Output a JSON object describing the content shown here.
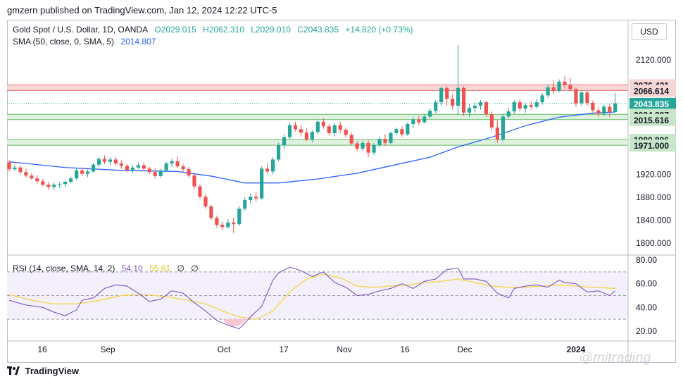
{
  "header": {
    "attribution": "gmzern published on TradingView.com, Jan 12, 2024 12:22 UTC-5",
    "currency_button": "USD"
  },
  "legend": {
    "symbol": "Gold Spot / U.S. Dollar, 1D, OANDA",
    "open": "O2029.015",
    "high": "H2062.310",
    "low": "L2029.010",
    "close": "C2043.835",
    "change": "+14.820 (+0.73%)",
    "sma_label": "SMA (50, close, 0, SMA, 5)",
    "sma_value": "2014.807",
    "rsi_label": "RSI (14, close, SMA, 14, 2)",
    "rsi_value": "54.10",
    "rsi_sma_value": "55.61",
    "rsi_extra1": "∅",
    "rsi_extra2": "∅"
  },
  "colors": {
    "up": "#26a69a",
    "down": "#ef5350",
    "sma": "#2962ff",
    "rsi": "#7e57c2",
    "rsi_sma": "#f5d33a",
    "resistance_zone": "#f8d6d6",
    "support_zone": "#dff2df"
  },
  "footer": {
    "brand": "TradingView",
    "watermark": "@mitrading"
  },
  "chart_data": [
    {
      "type": "candlestick",
      "title": "Gold Spot / U.S. Dollar, 1D, OANDA",
      "y_axis_ticks": [
        "2120.000",
        "2080.000",
        "1920.000",
        "1880.000",
        "1840.000",
        "1800.000"
      ],
      "x_axis_ticks": [
        "16",
        "Sep",
        "Oct",
        "17",
        "Nov",
        "16",
        "Dec",
        "2024"
      ],
      "ylim": [
        1780,
        2160
      ],
      "price_labels": [
        {
          "text": "2076.421",
          "kind": "resistance"
        },
        {
          "text": "2066.614",
          "kind": "resistance"
        },
        {
          "text": "2043.835",
          "kind": "last",
          "sub": "04:37:43"
        },
        {
          "text": "2024.897",
          "kind": "support"
        },
        {
          "text": "2015.616",
          "kind": "support"
        },
        {
          "text": "1980.806",
          "kind": "support"
        },
        {
          "text": "1971.000",
          "kind": "support"
        }
      ],
      "zones": [
        {
          "kind": "resistance",
          "from": 2066.614,
          "to": 2076.421
        },
        {
          "kind": "support",
          "from": 2015.616,
          "to": 2024.897
        },
        {
          "kind": "support",
          "from": 1971.0,
          "to": 1980.806
        }
      ],
      "candles": [
        [
          1941,
          1945,
          1925,
          1929
        ],
        [
          1929,
          1937,
          1926,
          1932
        ],
        [
          1932,
          1936,
          1920,
          1924
        ],
        [
          1924,
          1930,
          1914,
          1918
        ],
        [
          1918,
          1922,
          1910,
          1913
        ],
        [
          1913,
          1918,
          1904,
          1908
        ],
        [
          1908,
          1912,
          1899,
          1902
        ],
        [
          1902,
          1907,
          1893,
          1898
        ],
        [
          1898,
          1906,
          1893,
          1902
        ],
        [
          1902,
          1907,
          1896,
          1903
        ],
        [
          1903,
          1910,
          1898,
          1907
        ],
        [
          1907,
          1916,
          1904,
          1913
        ],
        [
          1913,
          1930,
          1910,
          1927
        ],
        [
          1927,
          1932,
          1917,
          1921
        ],
        [
          1921,
          1929,
          1915,
          1925
        ],
        [
          1925,
          1940,
          1923,
          1937
        ],
        [
          1937,
          1950,
          1932,
          1947
        ],
        [
          1947,
          1953,
          1938,
          1942
        ],
        [
          1942,
          1950,
          1936,
          1946
        ],
        [
          1946,
          1951,
          1935,
          1939
        ],
        [
          1939,
          1945,
          1930,
          1935
        ],
        [
          1935,
          1938,
          1924,
          1928
        ],
        [
          1928,
          1936,
          1922,
          1932
        ],
        [
          1932,
          1942,
          1929,
          1936
        ],
        [
          1936,
          1941,
          1927,
          1930
        ],
        [
          1930,
          1933,
          1920,
          1924
        ],
        [
          1924,
          1930,
          1913,
          1917
        ],
        [
          1917,
          1930,
          1914,
          1927
        ],
        [
          1927,
          1942,
          1924,
          1939
        ],
        [
          1939,
          1947,
          1933,
          1943
        ],
        [
          1943,
          1951,
          1931,
          1934
        ],
        [
          1934,
          1938,
          1924,
          1929
        ],
        [
          1929,
          1933,
          1914,
          1918
        ],
        [
          1918,
          1922,
          1895,
          1899
        ],
        [
          1899,
          1903,
          1877,
          1881
        ],
        [
          1881,
          1886,
          1860,
          1864
        ],
        [
          1864,
          1867,
          1840,
          1844
        ],
        [
          1844,
          1848,
          1827,
          1832
        ],
        [
          1832,
          1837,
          1823,
          1828
        ],
        [
          1828,
          1842,
          1825,
          1836
        ],
        [
          1836,
          1845,
          1817,
          1833
        ],
        [
          1833,
          1865,
          1830,
          1860
        ],
        [
          1860,
          1880,
          1856,
          1875
        ],
        [
          1875,
          1887,
          1869,
          1881
        ],
        [
          1881,
          1890,
          1873,
          1878
        ],
        [
          1878,
          1934,
          1876,
          1930
        ],
        [
          1930,
          1940,
          1921,
          1925
        ],
        [
          1925,
          1950,
          1920,
          1946
        ],
        [
          1946,
          1975,
          1943,
          1971
        ],
        [
          1971,
          1990,
          1965,
          1985
        ],
        [
          1985,
          2010,
          1982,
          2006
        ],
        [
          2006,
          2012,
          1995,
          1999
        ],
        [
          1999,
          2007,
          1986,
          1993
        ],
        [
          1993,
          2000,
          1978,
          1981
        ],
        [
          1981,
          1997,
          1976,
          1994
        ],
        [
          1994,
          2016,
          1991,
          2012
        ],
        [
          2012,
          2018,
          2000,
          2004
        ],
        [
          2004,
          2008,
          1988,
          1992
        ],
        [
          1992,
          2010,
          1986,
          2006
        ],
        [
          2006,
          2012,
          1992,
          1998
        ],
        [
          1998,
          2002,
          1984,
          1989
        ],
        [
          1989,
          1993,
          1971,
          1974
        ],
        [
          1974,
          1978,
          1961,
          1965
        ],
        [
          1965,
          1979,
          1960,
          1975
        ],
        [
          1975,
          1980,
          1950,
          1958
        ],
        [
          1958,
          1975,
          1954,
          1971
        ],
        [
          1971,
          1986,
          1967,
          1982
        ],
        [
          1982,
          1990,
          1970,
          1975
        ],
        [
          1975,
          1995,
          1973,
          1992
        ],
        [
          1992,
          2002,
          1988,
          1999
        ],
        [
          1999,
          2004,
          1986,
          1990
        ],
        [
          1990,
          2011,
          1987,
          2008
        ],
        [
          2008,
          2020,
          2001,
          2016
        ],
        [
          2016,
          2022,
          2006,
          2011
        ],
        [
          2011,
          2025,
          2009,
          2021
        ],
        [
          2021,
          2035,
          2018,
          2031
        ],
        [
          2031,
          2050,
          2027,
          2046
        ],
        [
          2046,
          2073,
          2040,
          2071
        ],
        [
          2071,
          2074,
          2040,
          2052
        ],
        [
          2052,
          2060,
          2033,
          2040
        ],
        [
          2040,
          2146,
          2024,
          2071
        ],
        [
          2071,
          2074,
          2022,
          2028
        ],
        [
          2028,
          2043,
          2020,
          2036
        ],
        [
          2036,
          2045,
          2028,
          2040
        ],
        [
          2040,
          2050,
          2033,
          2046
        ],
        [
          2046,
          2049,
          2020,
          2025
        ],
        [
          2025,
          2030,
          1997,
          2002
        ],
        [
          2002,
          2015,
          1975,
          1981
        ],
        [
          1981,
          2026,
          1978,
          2021
        ],
        [
          2021,
          2036,
          2018,
          2030
        ],
        [
          2030,
          2050,
          2025,
          2046
        ],
        [
          2046,
          2052,
          2030,
          2035
        ],
        [
          2035,
          2045,
          2028,
          2041
        ],
        [
          2041,
          2048,
          2033,
          2038
        ],
        [
          2038,
          2052,
          2035,
          2046
        ],
        [
          2046,
          2062,
          2042,
          2058
        ],
        [
          2058,
          2076,
          2054,
          2072
        ],
        [
          2072,
          2085,
          2060,
          2066
        ],
        [
          2066,
          2086,
          2063,
          2082
        ],
        [
          2082,
          2092,
          2070,
          2076
        ],
        [
          2076,
          2088,
          2065,
          2069
        ],
        [
          2069,
          2072,
          2038,
          2044
        ],
        [
          2044,
          2068,
          2040,
          2063
        ],
        [
          2063,
          2066,
          2040,
          2045
        ],
        [
          2045,
          2049,
          2028,
          2032
        ],
        [
          2032,
          2037,
          2020,
          2026
        ],
        [
          2026,
          2042,
          2022,
          2038
        ],
        [
          2038,
          2043,
          2020,
          2029
        ],
        [
          2029,
          2062,
          2029,
          2044
        ]
      ],
      "sma": [
        {
          "i": 0,
          "v": 1942
        },
        {
          "i": 10,
          "v": 1932
        },
        {
          "i": 20,
          "v": 1927
        },
        {
          "i": 30,
          "v": 1925
        },
        {
          "i": 36,
          "v": 1917
        },
        {
          "i": 42,
          "v": 1905
        },
        {
          "i": 48,
          "v": 1905
        },
        {
          "i": 55,
          "v": 1912
        },
        {
          "i": 62,
          "v": 1922
        },
        {
          "i": 68,
          "v": 1935
        },
        {
          "i": 75,
          "v": 1950
        },
        {
          "i": 80,
          "v": 1968
        },
        {
          "i": 86,
          "v": 1985
        },
        {
          "i": 92,
          "v": 2005
        },
        {
          "i": 98,
          "v": 2020
        },
        {
          "i": 104,
          "v": 2027
        },
        {
          "i": 108,
          "v": 2029
        }
      ]
    },
    {
      "type": "line",
      "title": "RSI (14, close, SMA, 14, 2)",
      "y_axis_ticks": [
        "80.00",
        "60.00",
        "40.00",
        "20.00"
      ],
      "ylim": [
        14,
        84
      ],
      "levels": {
        "upper": 70,
        "middle": 50,
        "lower": 30
      },
      "series": [
        {
          "name": "RSI",
          "points": [
            [
              0,
              46
            ],
            [
              3,
              42
            ],
            [
              6,
              40
            ],
            [
              8,
              36
            ],
            [
              10,
              33
            ],
            [
              12,
              38
            ],
            [
              13,
              46
            ],
            [
              15,
              48
            ],
            [
              17,
              56
            ],
            [
              19,
              59
            ],
            [
              21,
              58
            ],
            [
              23,
              52
            ],
            [
              25,
              45
            ],
            [
              27,
              47
            ],
            [
              29,
              54
            ],
            [
              31,
              52
            ],
            [
              33,
              44
            ],
            [
              35,
              37
            ],
            [
              37,
              29
            ],
            [
              39,
              25
            ],
            [
              41,
              22
            ],
            [
              43,
              32
            ],
            [
              45,
              41
            ],
            [
              46,
              52
            ],
            [
              47,
              63
            ],
            [
              48,
              69
            ],
            [
              50,
              74
            ],
            [
              52,
              71
            ],
            [
              54,
              66
            ],
            [
              56,
              70
            ],
            [
              58,
              61
            ],
            [
              60,
              57
            ],
            [
              62,
              50
            ],
            [
              64,
              51
            ],
            [
              66,
              54
            ],
            [
              68,
              56
            ],
            [
              70,
              60
            ],
            [
              72,
              56
            ],
            [
              74,
              62
            ],
            [
              76,
              64
            ],
            [
              78,
              72
            ],
            [
              80,
              73
            ],
            [
              81,
              64
            ],
            [
              83,
              64
            ],
            [
              85,
              62
            ],
            [
              87,
              52
            ],
            [
              89,
              48
            ],
            [
              90,
              56
            ],
            [
              92,
              58
            ],
            [
              94,
              59
            ],
            [
              96,
              57
            ],
            [
              98,
              63
            ],
            [
              99,
              61
            ],
            [
              101,
              60
            ],
            [
              103,
              53
            ],
            [
              105,
              54
            ],
            [
              107,
              50
            ],
            [
              108,
              54
            ]
          ]
        },
        {
          "name": "RSI SMA",
          "points": [
            [
              0,
              51
            ],
            [
              4,
              46
            ],
            [
              8,
              43
            ],
            [
              12,
              43
            ],
            [
              16,
              46
            ],
            [
              20,
              50
            ],
            [
              24,
              51
            ],
            [
              28,
              49
            ],
            [
              32,
              46
            ],
            [
              35,
              43
            ],
            [
              38,
              37
            ],
            [
              41,
              32
            ],
            [
              44,
              30
            ],
            [
              47,
              37
            ],
            [
              50,
              53
            ],
            [
              53,
              64
            ],
            [
              56,
              68
            ],
            [
              59,
              65
            ],
            [
              62,
              58
            ],
            [
              65,
              57
            ],
            [
              68,
              58
            ],
            [
              71,
              59
            ],
            [
              74,
              61
            ],
            [
              77,
              62
            ],
            [
              80,
              64
            ],
            [
              83,
              61
            ],
            [
              86,
              58
            ],
            [
              89,
              57
            ],
            [
              92,
              57
            ],
            [
              95,
              58
            ],
            [
              98,
              59
            ],
            [
              101,
              58
            ],
            [
              104,
              57
            ],
            [
              108,
              56
            ]
          ]
        }
      ]
    }
  ]
}
